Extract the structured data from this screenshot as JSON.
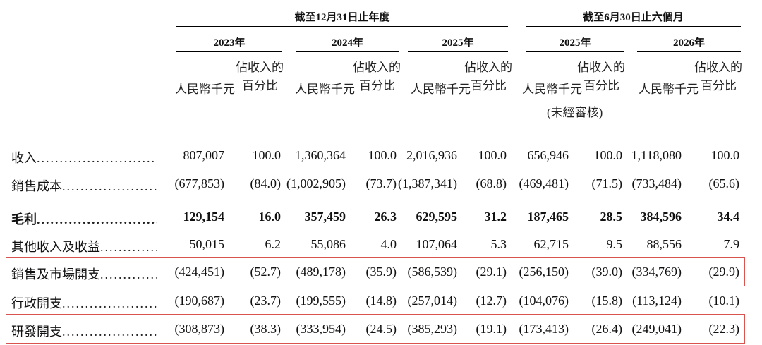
{
  "header": {
    "group_fy": "截至12月31日止年度",
    "group_6m": "截至6月30日止六個月",
    "years": [
      "2023年",
      "2024年",
      "2025年",
      "2025年",
      "2026年"
    ],
    "unit_rmb": "人民幣千元",
    "unit_pct_line1": "佔收入的",
    "unit_pct_line2": "百分比",
    "unaudited": "(未經審核)"
  },
  "rows": [
    {
      "label": "收入",
      "bold": false,
      "values": [
        "807,007",
        "100.0",
        "1,360,364",
        "100.0",
        "2,016,936",
        "100.0",
        "656,946",
        "100.0",
        "1,118,080",
        "100.0"
      ]
    },
    {
      "label": "銷售成本",
      "bold": false,
      "values": [
        "(677,853)",
        "(84.0)",
        "(1,002,905)",
        "(73.7)",
        "(1,387,341)",
        "(68.8)",
        "(469,481)",
        "(71.5)",
        "(733,484)",
        "(65.6)"
      ]
    },
    {
      "label": "毛利",
      "bold": true,
      "values": [
        "129,154",
        "16.0",
        "357,459",
        "26.3",
        "629,595",
        "31.2",
        "187,465",
        "28.5",
        "384,596",
        "34.4"
      ]
    },
    {
      "label": "其他收入及收益",
      "bold": false,
      "values": [
        "50,015",
        "6.2",
        "55,086",
        "4.0",
        "107,064",
        "5.3",
        "62,715",
        "9.5",
        "88,556",
        "7.9"
      ]
    },
    {
      "label": "銷售及市場開支",
      "bold": false,
      "values": [
        "(424,451)",
        "(52.7)",
        "(489,178)",
        "(35.9)",
        "(586,539)",
        "(29.1)",
        "(256,150)",
        "(39.0)",
        "(334,769)",
        "(29.9)"
      ]
    },
    {
      "label": "行政開支",
      "bold": false,
      "values": [
        "(190,687)",
        "(23.7)",
        "(199,555)",
        "(14.8)",
        "(257,014)",
        "(12.7)",
        "(104,076)",
        "(15.8)",
        "(113,124)",
        "(10.1)"
      ]
    },
    {
      "label": "研發開支",
      "bold": false,
      "values": [
        "(308,873)",
        "(38.3)",
        "(333,954)",
        "(24.5)",
        "(385,293)",
        "(19.1)",
        "(173,413)",
        "(26.4)",
        "(249,041)",
        "(22.3)"
      ]
    }
  ],
  "highlight_color": "#d9534f"
}
